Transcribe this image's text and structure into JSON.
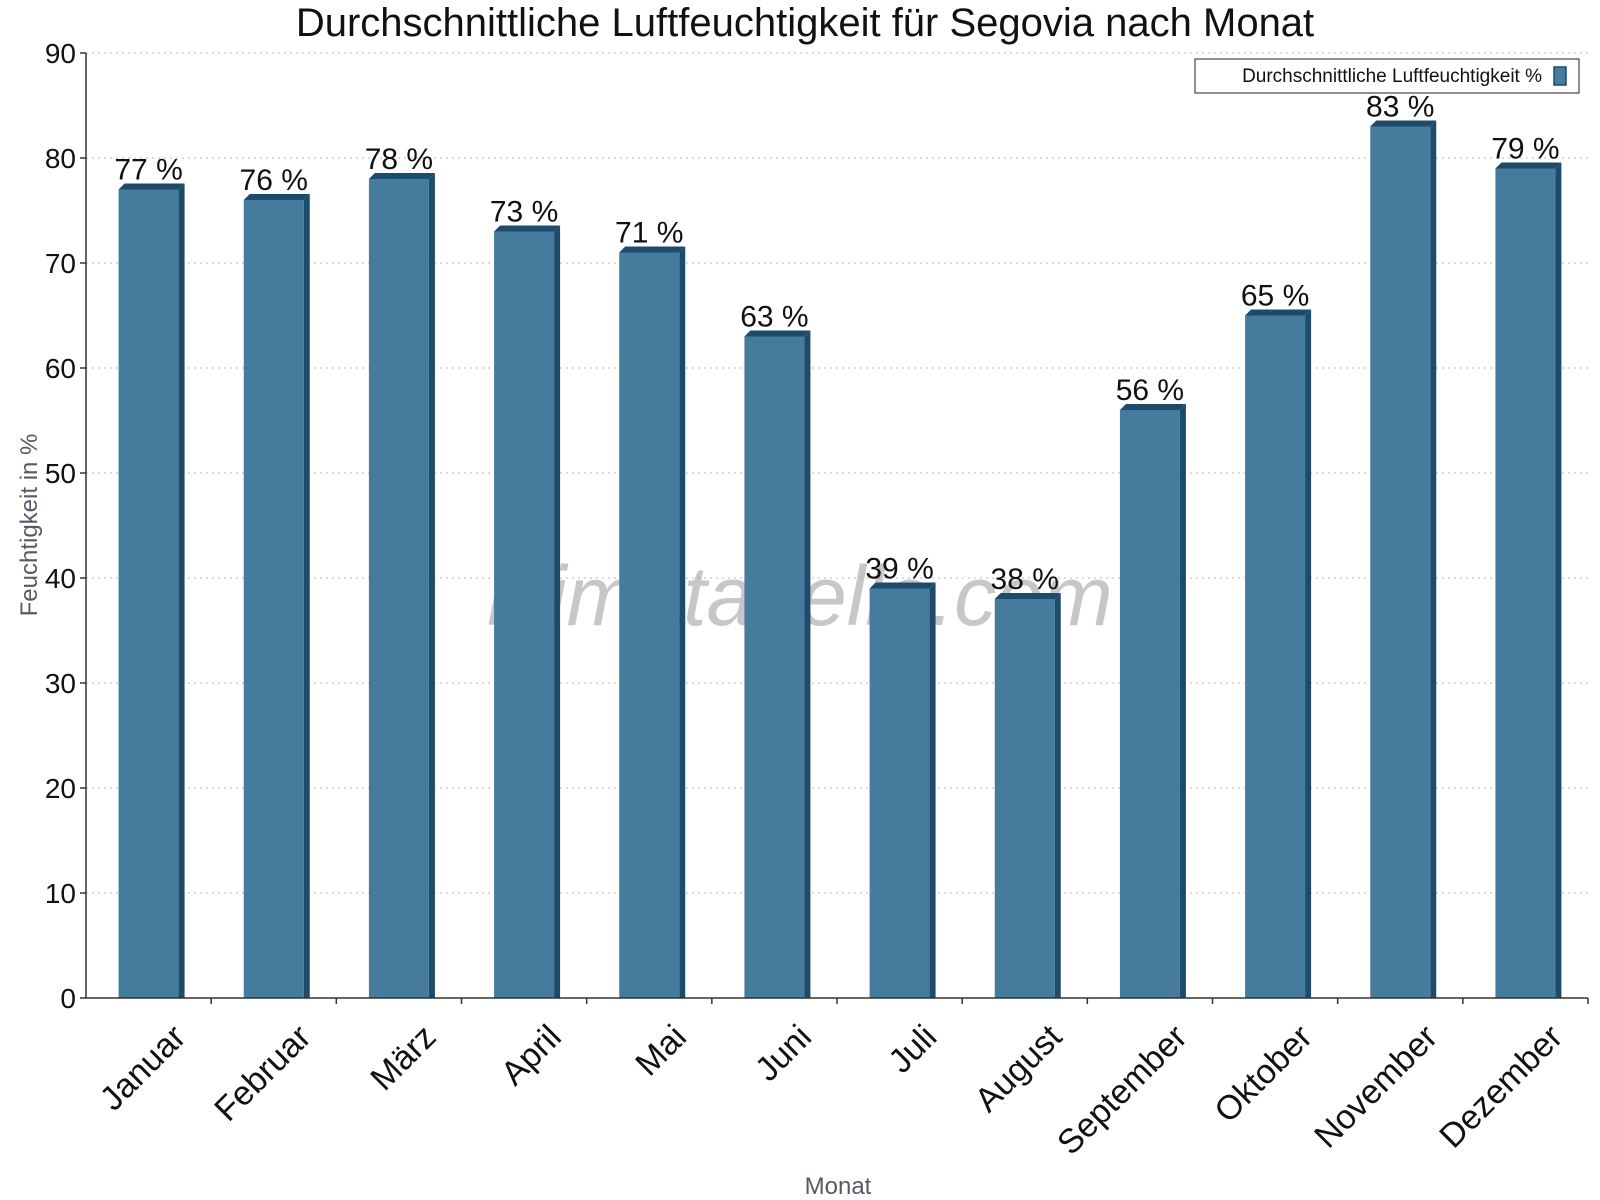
{
  "chart_data": {
    "type": "bar",
    "title": "Durchschnittliche Luftfeuchtigkeit für Segovia nach Monat",
    "xlabel": "Monat",
    "ylabel": "Feuchtigkeit in %",
    "categories": [
      "Januar",
      "Februar",
      "März",
      "April",
      "Mai",
      "Juni",
      "Juli",
      "August",
      "September",
      "Oktober",
      "November",
      "Dezember"
    ],
    "series": [
      {
        "name": "Durchschnittliche Luftfeuchtigkeit %",
        "values": [
          77,
          76,
          78,
          73,
          71,
          63,
          39,
          38,
          56,
          65,
          83,
          79
        ],
        "labels": [
          "77 %",
          "76 %",
          "78 %",
          "73 %",
          "71 %",
          "63 %",
          "39 %",
          "38 %",
          "56 %",
          "65 %",
          "83 %",
          "79 %"
        ],
        "color": "#457b9d"
      }
    ],
    "ylim": [
      0,
      90
    ],
    "yticks": [
      0,
      10,
      20,
      30,
      40,
      50,
      60,
      70,
      80,
      90
    ],
    "grid": true,
    "legend_position": "top-right",
    "watermark": "klimatabelle.com"
  }
}
